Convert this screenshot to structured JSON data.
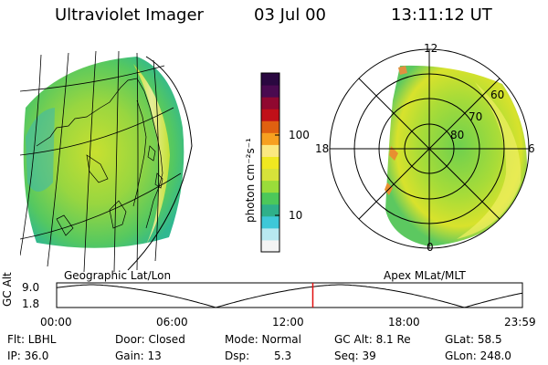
{
  "header": {
    "title": "Ultraviolet Imager",
    "date": "03 Jul 00",
    "time": "13:11:12 UT"
  },
  "left_panel": {
    "label": "Geographic Lat/Lon"
  },
  "right_panel": {
    "label": "Apex MLat/MLT",
    "mlt_labels": {
      "top": "12",
      "left": "18",
      "right": "6",
      "bottom": "0"
    },
    "lat_labels": [
      "60",
      "70",
      "80"
    ]
  },
  "colorbar": {
    "unit_label": "photon cm⁻²s⁻¹",
    "ticks": [
      "100",
      "10"
    ],
    "scale": "log",
    "colors_bottom_to_top": [
      "#f4f4f4",
      "#b8e8f0",
      "#3ec8d8",
      "#2fb08a",
      "#4cc85a",
      "#9adc3a",
      "#d6e23a",
      "#f0e820",
      "#fbe880",
      "#f7a020",
      "#e06010",
      "#c01018",
      "#900830",
      "#4a0a50",
      "#2a0840"
    ]
  },
  "timeline": {
    "axis_label": "GC Alt",
    "y_ticks": [
      "9.0",
      "1.8"
    ],
    "x_ticks": [
      "00:00",
      "06:00",
      "12:00",
      "18:00",
      "23:59"
    ],
    "cursor_hour": 13.19,
    "orbit_minima_hours": [
      8.2,
      21.0
    ],
    "cursor_color": "#e01010"
  },
  "info": {
    "flt": "Flt: LBHL",
    "ip": "IP: 36.0",
    "door": "Door: Closed",
    "gain": "Gain: 13",
    "mode": "Mode: Normal",
    "dsp_label": "Dsp:",
    "dsp_value": "5.3",
    "gc_alt": "GC Alt: 8.1 Re",
    "seq": "Seq: 39",
    "glat": "GLat:  58.5",
    "glon": "GLon: 248.0"
  }
}
